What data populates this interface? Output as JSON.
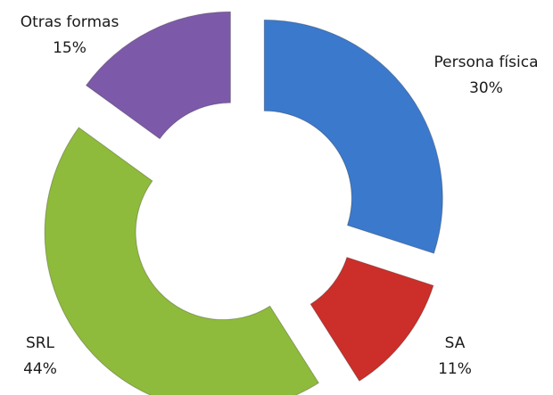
{
  "chart_data": {
    "type": "doughnut",
    "categories": [
      "Persona física",
      "SA",
      "SRL",
      "Otras formas"
    ],
    "values": [
      30,
      11,
      44,
      15
    ],
    "value_labels": [
      "30%",
      "11%",
      "44%",
      "15%"
    ],
    "colors": [
      "#3b79cc",
      "#cc2f2a",
      "#8fbb3c",
      "#7d5aa9"
    ],
    "exploded": true
  }
}
